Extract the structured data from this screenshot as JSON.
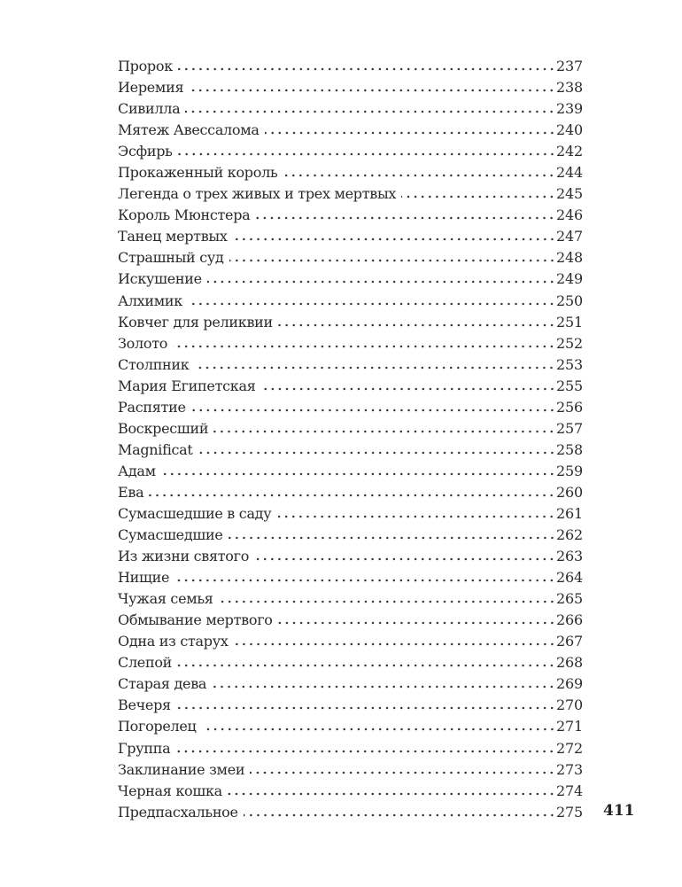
{
  "toc": [
    {
      "title": "Пророк",
      "page": "237"
    },
    {
      "title": "Иеремия",
      "page": "238"
    },
    {
      "title": "Сивилла",
      "page": "239"
    },
    {
      "title": "Мятеж Авессалома",
      "page": "240"
    },
    {
      "title": "Эсфирь",
      "page": "242"
    },
    {
      "title": "Прокаженный король",
      "page": "244"
    },
    {
      "title": "Легенда о трех живых и трех мертвых",
      "page": "245"
    },
    {
      "title": "Король Мюнстера",
      "page": "246"
    },
    {
      "title": "Танец мертвых",
      "page": "247"
    },
    {
      "title": "Страшный суд",
      "page": "248"
    },
    {
      "title": "Искушение",
      "page": "249"
    },
    {
      "title": "Алхимик",
      "page": "250"
    },
    {
      "title": "Ковчег для реликвии",
      "page": "251"
    },
    {
      "title": "Золото",
      "page": "252"
    },
    {
      "title": "Столпник",
      "page": "253"
    },
    {
      "title": "Мария Египетская",
      "page": "255"
    },
    {
      "title": "Распятие",
      "page": "256"
    },
    {
      "title": "Воскресший",
      "page": "257"
    },
    {
      "title": "Magnificat",
      "page": "258"
    },
    {
      "title": "Адам",
      "page": "259"
    },
    {
      "title": "Ева",
      "page": "260"
    },
    {
      "title": "Сумасшедшие в саду",
      "page": "261"
    },
    {
      "title": "Сумасшедшие",
      "page": "262"
    },
    {
      "title": "Из жизни святого",
      "page": "263"
    },
    {
      "title": "Нищие",
      "page": "264"
    },
    {
      "title": "Чужая семья",
      "page": "265"
    },
    {
      "title": "Обмывание мертвого",
      "page": "266"
    },
    {
      "title": "Одна из старух",
      "page": "267"
    },
    {
      "title": "Слепой",
      "page": "268"
    },
    {
      "title": "Старая дева",
      "page": "269"
    },
    {
      "title": "Вечеря",
      "page": "270"
    },
    {
      "title": "Погорелец",
      "page": "271"
    },
    {
      "title": "Группа",
      "page": "272"
    },
    {
      "title": "Заклинание змеи",
      "page": "273"
    },
    {
      "title": "Черная кошка",
      "page": "274"
    },
    {
      "title": "Предпасхальное",
      "page": "275"
    }
  ],
  "folio": "411"
}
